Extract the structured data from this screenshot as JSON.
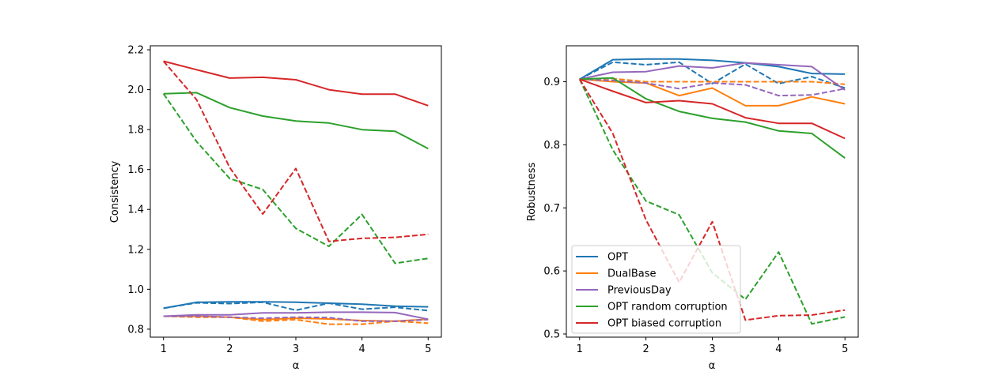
{
  "colors": {
    "OPT": "#1f77b4",
    "DualBase": "#ff7f0e",
    "PreviousDay": "#9467bd",
    "OPT random corruption": "#2ca02c",
    "OPT biased corruption": "#d62728"
  },
  "chart_data": [
    {
      "type": "line",
      "xlabel": "α",
      "ylabel": "Consistency",
      "xlim": [
        0.8,
        5.2
      ],
      "ylim": [
        0.76,
        2.22
      ],
      "xticks": [
        1,
        2,
        3,
        4,
        5
      ],
      "yticks": [
        0.8,
        1.0,
        1.2,
        1.4,
        1.6,
        1.8,
        2.0,
        2.2
      ],
      "x": [
        1,
        1.5,
        2,
        2.5,
        3,
        3.5,
        4,
        4.5,
        5
      ],
      "series": [
        {
          "name": "OPT",
          "style": "solid",
          "values": [
            0.905,
            0.935,
            0.937,
            0.937,
            0.935,
            0.93,
            0.925,
            0.915,
            0.912
          ]
        },
        {
          "name": "OPT",
          "style": "dashed",
          "values": [
            0.905,
            0.932,
            0.928,
            0.935,
            0.895,
            0.93,
            0.9,
            0.91,
            0.893
          ]
        },
        {
          "name": "DualBase",
          "style": "solid",
          "values": [
            0.865,
            0.865,
            0.86,
            0.848,
            0.855,
            0.851,
            0.843,
            0.84,
            0.85
          ]
        },
        {
          "name": "DualBase",
          "style": "dashed",
          "values": [
            0.865,
            0.86,
            0.86,
            0.84,
            0.848,
            0.825,
            0.825,
            0.84,
            0.83
          ]
        },
        {
          "name": "PreviousDay",
          "style": "solid",
          "values": [
            0.865,
            0.872,
            0.872,
            0.882,
            0.882,
            0.885,
            0.885,
            0.883,
            0.85
          ]
        },
        {
          "name": "PreviousDay",
          "style": "dashed",
          "values": [
            0.865,
            0.865,
            0.86,
            0.855,
            0.86,
            0.858,
            0.84,
            0.84,
            0.848
          ]
        },
        {
          "name": "OPT random corruption",
          "style": "solid",
          "values": [
            1.98,
            1.985,
            1.91,
            1.868,
            1.843,
            1.833,
            1.8,
            1.792,
            1.705
          ]
        },
        {
          "name": "OPT random corruption",
          "style": "dashed",
          "values": [
            1.98,
            1.74,
            1.555,
            1.5,
            1.305,
            1.215,
            1.375,
            1.13,
            1.155
          ]
        },
        {
          "name": "OPT biased corruption",
          "style": "solid",
          "values": [
            2.143,
            2.1,
            2.058,
            2.062,
            2.05,
            2.0,
            1.978,
            1.978,
            1.92
          ]
        },
        {
          "name": "OPT biased corruption",
          "style": "dashed",
          "values": [
            2.143,
            1.95,
            1.61,
            1.377,
            1.605,
            1.24,
            1.255,
            1.26,
            1.275
          ]
        }
      ]
    },
    {
      "type": "line",
      "xlabel": "α",
      "ylabel": "Robustness",
      "xlim": [
        0.8,
        5.2
      ],
      "ylim": [
        0.495,
        0.957
      ],
      "xticks": [
        1,
        2,
        3,
        4,
        5
      ],
      "yticks": [
        0.5,
        0.6,
        0.7,
        0.8,
        0.9
      ],
      "legend": "bottom-left",
      "x": [
        1,
        1.5,
        2,
        2.5,
        3,
        3.5,
        4,
        4.5,
        5
      ],
      "series": [
        {
          "name": "OPT",
          "style": "solid",
          "values": [
            0.904,
            0.935,
            0.936,
            0.936,
            0.934,
            0.93,
            0.924,
            0.913,
            0.912
          ]
        },
        {
          "name": "OPT",
          "style": "dashed",
          "values": [
            0.904,
            0.931,
            0.927,
            0.931,
            0.897,
            0.928,
            0.897,
            0.908,
            0.89
          ]
        },
        {
          "name": "DualBase",
          "style": "solid",
          "values": [
            0.904,
            0.9,
            0.898,
            0.878,
            0.89,
            0.862,
            0.862,
            0.876,
            0.865
          ]
        },
        {
          "name": "DualBase",
          "style": "dashed",
          "values": [
            0.904,
            0.905,
            0.9,
            0.9,
            0.9,
            0.9,
            0.9,
            0.9,
            0.896
          ]
        },
        {
          "name": "PreviousDay",
          "style": "solid",
          "values": [
            0.904,
            0.915,
            0.916,
            0.925,
            0.922,
            0.93,
            0.927,
            0.924,
            0.887
          ]
        },
        {
          "name": "PreviousDay",
          "style": "dashed",
          "values": [
            0.904,
            0.902,
            0.898,
            0.889,
            0.898,
            0.895,
            0.878,
            0.879,
            0.889
          ]
        },
        {
          "name": "OPT random corruption",
          "style": "solid",
          "values": [
            0.904,
            0.906,
            0.873,
            0.853,
            0.842,
            0.836,
            0.822,
            0.818,
            0.779
          ]
        },
        {
          "name": "OPT random corruption",
          "style": "dashed",
          "values": [
            0.904,
            0.792,
            0.711,
            0.689,
            0.597,
            0.555,
            0.63,
            0.516,
            0.527
          ]
        },
        {
          "name": "OPT biased corruption",
          "style": "solid",
          "values": [
            0.904,
            0.885,
            0.867,
            0.87,
            0.865,
            0.843,
            0.834,
            0.834,
            0.81
          ]
        },
        {
          "name": "OPT biased corruption",
          "style": "dashed",
          "values": [
            0.904,
            0.818,
            0.681,
            0.582,
            0.678,
            0.522,
            0.529,
            0.53,
            0.538
          ]
        }
      ]
    }
  ],
  "legend": {
    "items": [
      "OPT",
      "DualBase",
      "PreviousDay",
      "OPT random corruption",
      "OPT biased corruption"
    ]
  }
}
